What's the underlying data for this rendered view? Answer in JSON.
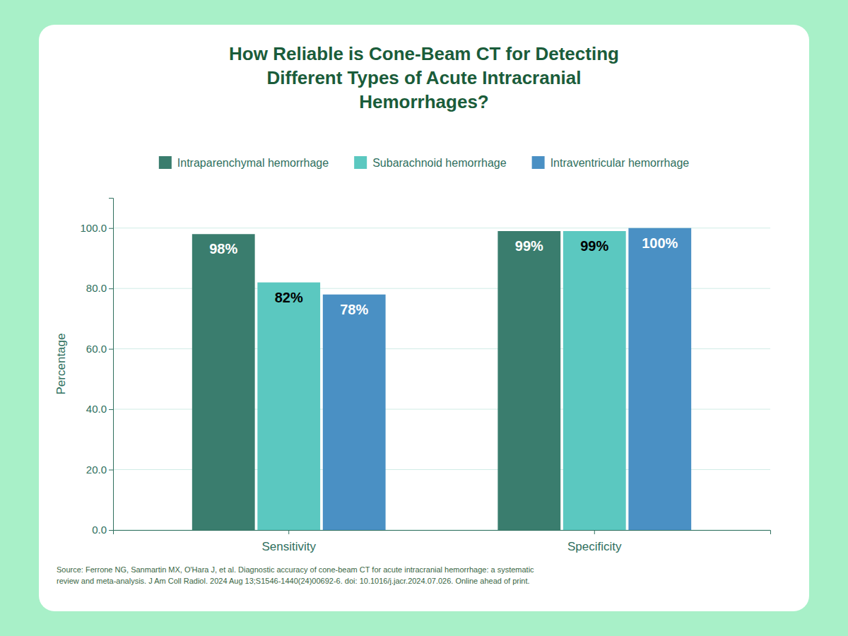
{
  "chart_data": {
    "type": "bar",
    "title": "How Reliable is Cone-Beam CT for Detecting\nDifferent Types of Acute Intracranial\nHemorrhages?",
    "categories": [
      "Sensitivity",
      "Specificity"
    ],
    "series": [
      {
        "name": "Intraparenchymal hemorrhage",
        "values": [
          98,
          99
        ],
        "value_labels": [
          "98%",
          "99%"
        ],
        "color": "#3a7d6e"
      },
      {
        "name": "Subarachnoid hemorrhage",
        "values": [
          82,
          99
        ],
        "value_labels": [
          "82%",
          "99%"
        ],
        "color": "#5bc8c0"
      },
      {
        "name": "Intraventricular hemorrhage",
        "values": [
          78,
          100
        ],
        "value_labels": [
          "78%",
          "100%"
        ],
        "color": "#4a90c4"
      }
    ],
    "ylabel": "Percentage",
    "ylim": [
      0,
      110
    ],
    "yticks": [
      {
        "value": 0,
        "label": "0.0"
      },
      {
        "value": 20,
        "label": "20.0"
      },
      {
        "value": 40,
        "label": "40.0"
      },
      {
        "value": 60,
        "label": "60.0"
      },
      {
        "value": 80,
        "label": "80.0"
      },
      {
        "value": 100,
        "label": "100.0"
      }
    ],
    "grid": true,
    "legend": "top",
    "data_labels": true,
    "source": "Source: Ferrone NG, Sanmartin MX, O'Hara J, et al. Diagnostic accuracy of cone-beam CT for acute intracranial hemorrhage: a systematic\nreview and meta-analysis. J Am Coll Radiol. 2024 Aug 13;S1546-1440(24)00692-6. doi: 10.1016/j.jacr.2024.07.026. Online ahead of print."
  }
}
